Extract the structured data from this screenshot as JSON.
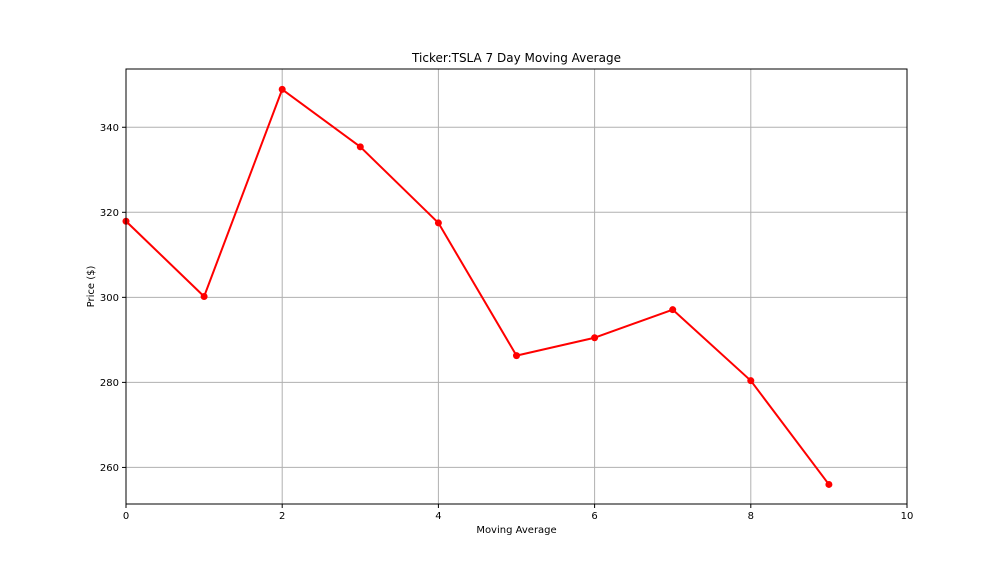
{
  "chart_data": {
    "type": "line",
    "title": "Ticker:TSLA 7 Day Moving Average",
    "xlabel": "Moving Average",
    "ylabel": "Price ($)",
    "xlim": [
      0,
      10
    ],
    "ylim": [
      251.4,
      353.7
    ],
    "xticks": [
      0,
      2,
      4,
      6,
      8,
      10
    ],
    "yticks": [
      260,
      280,
      300,
      320,
      340
    ],
    "grid": true,
    "legend": "none",
    "series": [
      {
        "color": "#ff0000",
        "marker": "circle",
        "x": [
          0,
          1,
          2,
          3,
          4,
          5,
          6,
          7,
          8,
          9
        ],
        "y": [
          317.9,
          300.2,
          348.9,
          335.4,
          317.5,
          286.3,
          290.5,
          297.1,
          280.4,
          256.0
        ]
      }
    ]
  }
}
